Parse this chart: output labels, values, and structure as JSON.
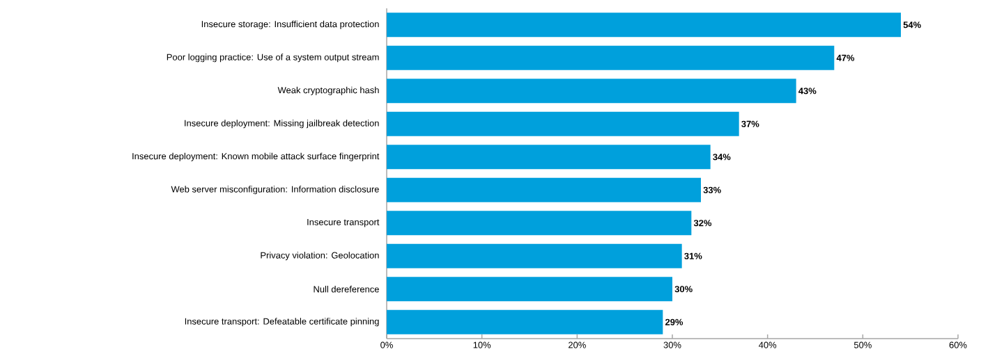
{
  "chart_data": {
    "type": "bar",
    "orientation": "horizontal",
    "categories": [
      "Insecure storage: Insufficient data protection",
      "Poor logging practice: Use of a system output stream",
      "Weak cryptographic hash",
      "Insecure deployment:  Missing jailbreak detection",
      "Insecure deployment:  Known mobile attack surface fingerprint",
      "Web server misconfiguration: Information disclosure",
      "Insecure transport",
      "Privacy violation: Geolocation",
      "Null dereference",
      "Insecure transport: Defeatable certificate pinning"
    ],
    "values": [
      54,
      47,
      43,
      37,
      34,
      33,
      32,
      31,
      30,
      29
    ],
    "value_labels": [
      "54%",
      "47%",
      "43%",
      "37%",
      "34%",
      "33%",
      "32%",
      "31%",
      "30%",
      "29%"
    ],
    "color": "#00a0dc",
    "xlim": [
      0,
      60
    ],
    "xticks": [
      {
        "value": 0,
        "label": "0%"
      },
      {
        "value": 10,
        "label": "10%"
      },
      {
        "value": 20,
        "label": "20%"
      },
      {
        "value": 30,
        "label": "30%"
      },
      {
        "value": 40,
        "label": "40%"
      },
      {
        "value": 50,
        "label": "50%"
      },
      {
        "value": 60,
        "label": "60%"
      }
    ]
  }
}
